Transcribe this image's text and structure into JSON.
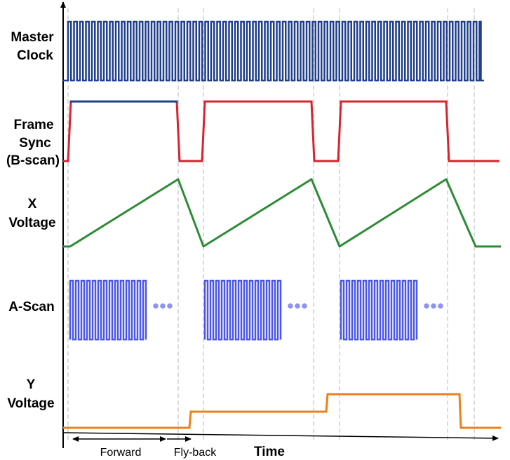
{
  "labels": {
    "master_clock_line1": "Master",
    "master_clock_line2": "Clock",
    "frame_sync_line1": "Frame",
    "frame_sync_line2": "Sync",
    "frame_sync_line3": "(B-scan)",
    "x_voltage_line1": "X",
    "x_voltage_line2": "Voltage",
    "a_scan": "A-Scan",
    "y_voltage_line1": "Y",
    "y_voltage_line2": "Voltage",
    "forward": "Forward",
    "fly_back": "Fly-back",
    "time": "Time"
  },
  "colors": {
    "master_clock": "#1f3f8a",
    "frame_sync": "#d9232e",
    "frame_sync_top": "#1f3f8a",
    "x_voltage": "#2e8b35",
    "a_scan": "#4a57e6",
    "a_scan_dots": "#8f94f0",
    "y_voltage": "#ee7f1a",
    "guide": "#b5b5b5",
    "axis": "#000000"
  }
}
